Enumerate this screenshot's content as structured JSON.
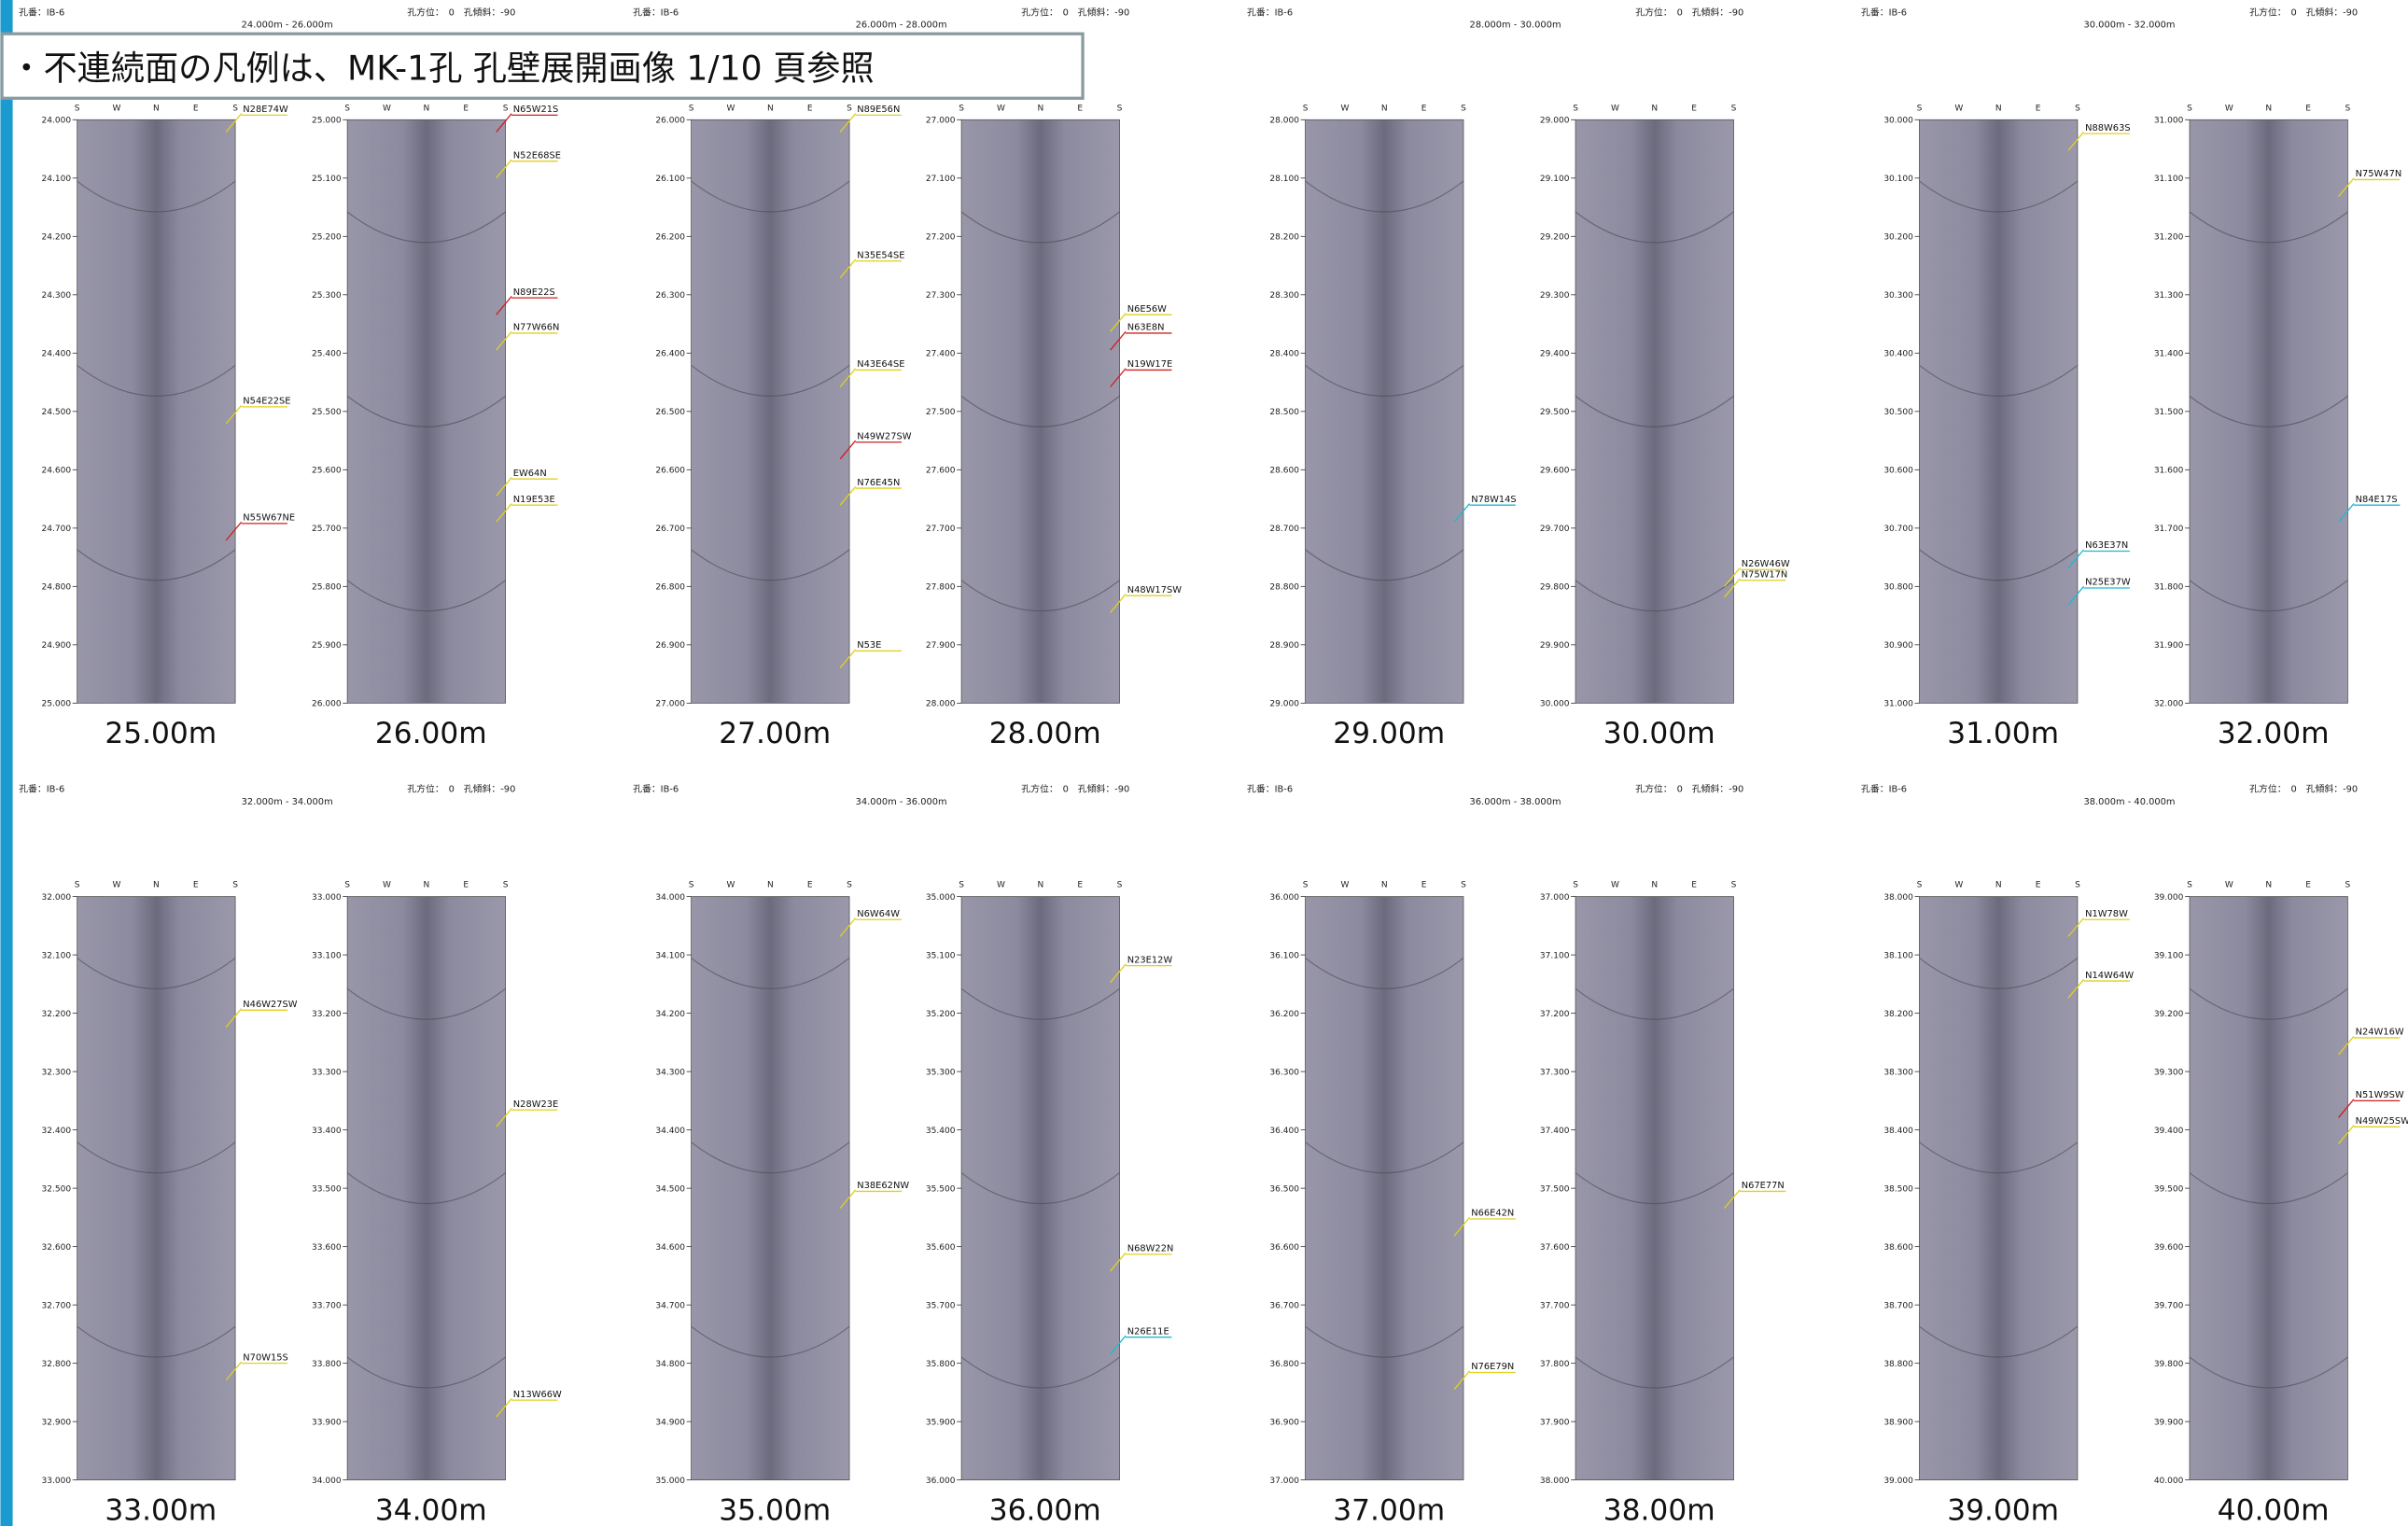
{
  "note": "・不連続面の凡例は、MK-1孔 孔壁展開画像 1/10 頁参照",
  "directions": [
    "S",
    "W",
    "N",
    "E",
    "S"
  ],
  "sheets": [
    {
      "borehole": "孔番：IB-6",
      "range": "24.000m - 26.000m",
      "orientation": "孔方位：　0　孔傾斜：-90",
      "panels": [
        {
          "caption": "25.00m",
          "depth_ticks": [
            "24.000",
            "24.100",
            "24.200",
            "24.300",
            "24.400",
            "24.500",
            "24.600",
            "24.700",
            "24.800",
            "24.900",
            "25.000"
          ],
          "features": [
            {
              "label": "N28E74W",
              "color": "#e0d020"
            },
            {
              "label": "N54E22SE",
              "color": "#e0d020"
            },
            {
              "label": "N55W67NE",
              "color": "#d02020"
            }
          ]
        },
        {
          "caption": "26.00m",
          "depth_ticks": [
            "25.000",
            "25.100",
            "25.200",
            "25.300",
            "25.400",
            "25.500",
            "25.600",
            "25.700",
            "25.800",
            "25.900",
            "26.000"
          ],
          "features": [
            {
              "label": "N65W21S",
              "color": "#d02020"
            },
            {
              "label": "N52E68SE",
              "color": "#e0d020"
            },
            {
              "label": "N89E22S",
              "color": "#d02020"
            },
            {
              "label": "N77W66N",
              "color": "#e0d020"
            },
            {
              "label": "EW64N",
              "color": "#e0d020"
            },
            {
              "label": "N19E53E",
              "color": "#e0d020"
            }
          ]
        }
      ]
    },
    {
      "borehole": "孔番：IB-6",
      "range": "26.000m - 28.000m",
      "orientation": "孔方位：　0　孔傾斜：-90",
      "panels": [
        {
          "caption": "27.00m",
          "depth_ticks": [
            "26.000",
            "26.100",
            "26.200",
            "26.300",
            "26.400",
            "26.500",
            "26.600",
            "26.700",
            "26.800",
            "26.900",
            "27.000"
          ],
          "features": [
            {
              "label": "N89E56N",
              "color": "#e0d020"
            },
            {
              "label": "N35E54SE",
              "color": "#e0d020"
            },
            {
              "label": "N43E64SE",
              "color": "#e0d020"
            },
            {
              "label": "N49W27SW",
              "color": "#d02020"
            },
            {
              "label": "N76E45N",
              "color": "#e0d020"
            },
            {
              "label": "N53E",
              "color": "#e0d020"
            }
          ]
        },
        {
          "caption": "28.00m",
          "depth_ticks": [
            "27.000",
            "27.100",
            "27.200",
            "27.300",
            "27.400",
            "27.500",
            "27.600",
            "27.700",
            "27.800",
            "27.900",
            "28.000"
          ],
          "features": [
            {
              "label": "N6E56W",
              "color": "#e0d020"
            },
            {
              "label": "N63E8N",
              "color": "#d02020"
            },
            {
              "label": "N19W17E",
              "color": "#d02020"
            },
            {
              "label": "N48W17SW",
              "color": "#e0d020"
            }
          ]
        }
      ]
    },
    {
      "borehole": "孔番：IB-6",
      "range": "28.000m - 30.000m",
      "orientation": "孔方位：　0　孔傾斜：-90",
      "panels": [
        {
          "caption": "29.00m",
          "depth_ticks": [
            "28.000",
            "28.100",
            "28.200",
            "28.300",
            "28.400",
            "28.500",
            "28.600",
            "28.700",
            "28.800",
            "28.900",
            "29.000"
          ],
          "features": [
            {
              "label": "N78W14S",
              "color": "#20b8d0"
            }
          ]
        },
        {
          "caption": "30.00m",
          "depth_ticks": [
            "29.000",
            "29.100",
            "29.200",
            "29.300",
            "29.400",
            "29.500",
            "29.600",
            "29.700",
            "29.800",
            "29.900",
            "30.000"
          ],
          "features": [
            {
              "label": "N26W46W",
              "color": "#e0d020"
            },
            {
              "label": "N75W17N",
              "color": "#e0d020"
            }
          ]
        }
      ]
    },
    {
      "borehole": "孔番：IB-6",
      "range": "30.000m - 32.000m",
      "orientation": "孔方位：　0　孔傾斜：-90",
      "panels": [
        {
          "caption": "31.00m",
          "depth_ticks": [
            "30.000",
            "30.100",
            "30.200",
            "30.300",
            "30.400",
            "30.500",
            "30.600",
            "30.700",
            "30.800",
            "30.900",
            "31.000"
          ],
          "features": [
            {
              "label": "N88W63S",
              "color": "#e0d020"
            },
            {
              "label": "N63E37N",
              "color": "#20b8d0"
            },
            {
              "label": "N25E37W",
              "color": "#20b8d0"
            }
          ]
        },
        {
          "caption": "32.00m",
          "depth_ticks": [
            "31.000",
            "31.100",
            "31.200",
            "31.300",
            "31.400",
            "31.500",
            "31.600",
            "31.700",
            "31.800",
            "31.900",
            "32.000"
          ],
          "features": [
            {
              "label": "N75W47N",
              "color": "#e0d020"
            },
            {
              "label": "N84E17S",
              "color": "#20b8d0"
            }
          ]
        }
      ]
    },
    {
      "borehole": "孔番：IB-6",
      "range": "32.000m - 34.000m",
      "orientation": "孔方位：　0　孔傾斜：-90",
      "panels": [
        {
          "caption": "33.00m",
          "depth_ticks": [
            "32.000",
            "32.100",
            "32.200",
            "32.300",
            "32.400",
            "32.500",
            "32.600",
            "32.700",
            "32.800",
            "32.900",
            "33.000"
          ],
          "features": [
            {
              "label": "N46W27SW",
              "color": "#e0d020"
            },
            {
              "label": "N70W15S",
              "color": "#e0d020"
            }
          ]
        },
        {
          "caption": "34.00m",
          "depth_ticks": [
            "33.000",
            "33.100",
            "33.200",
            "33.300",
            "33.400",
            "33.500",
            "33.600",
            "33.700",
            "33.800",
            "33.900",
            "34.000"
          ],
          "features": [
            {
              "label": "N28W23E",
              "color": "#e0d020"
            },
            {
              "label": "N13W66W",
              "color": "#e0d020"
            }
          ]
        }
      ]
    },
    {
      "borehole": "孔番：IB-6",
      "range": "34.000m - 36.000m",
      "orientation": "孔方位：　0　孔傾斜：-90",
      "panels": [
        {
          "caption": "35.00m",
          "depth_ticks": [
            "34.000",
            "34.100",
            "34.200",
            "34.300",
            "34.400",
            "34.500",
            "34.600",
            "34.700",
            "34.800",
            "34.900",
            "35.000"
          ],
          "features": [
            {
              "label": "N6W64W",
              "color": "#e0d020"
            },
            {
              "label": "N38E62NW",
              "color": "#e0d020"
            }
          ]
        },
        {
          "caption": "36.00m",
          "depth_ticks": [
            "35.000",
            "35.100",
            "35.200",
            "35.300",
            "35.400",
            "35.500",
            "35.600",
            "35.700",
            "35.800",
            "35.900",
            "36.000"
          ],
          "features": [
            {
              "label": "N23E12W",
              "color": "#e0d020"
            },
            {
              "label": "N68W22N",
              "color": "#e0d020"
            },
            {
              "label": "N26E11E",
              "color": "#20b8d0"
            }
          ]
        }
      ]
    },
    {
      "borehole": "孔番：IB-6",
      "range": "36.000m - 38.000m",
      "orientation": "孔方位：　0　孔傾斜：-90",
      "panels": [
        {
          "caption": "37.00m",
          "depth_ticks": [
            "36.000",
            "36.100",
            "36.200",
            "36.300",
            "36.400",
            "36.500",
            "36.600",
            "36.700",
            "36.800",
            "36.900",
            "37.000"
          ],
          "features": [
            {
              "label": "N66E42N",
              "color": "#e0d020"
            },
            {
              "label": "N76E79N",
              "color": "#e0d020"
            }
          ]
        },
        {
          "caption": "38.00m",
          "depth_ticks": [
            "37.000",
            "37.100",
            "37.200",
            "37.300",
            "37.400",
            "37.500",
            "37.600",
            "37.700",
            "37.800",
            "37.900",
            "38.000"
          ],
          "features": [
            {
              "label": "N67E77N",
              "color": "#e0d020"
            }
          ]
        }
      ]
    },
    {
      "borehole": "孔番：IB-6",
      "range": "38.000m - 40.000m",
      "orientation": "孔方位：　0　孔傾斜：-90",
      "panels": [
        {
          "caption": "39.00m",
          "depth_ticks": [
            "38.000",
            "38.100",
            "38.200",
            "38.300",
            "38.400",
            "38.500",
            "38.600",
            "38.700",
            "38.800",
            "38.900",
            "39.000"
          ],
          "features": [
            {
              "label": "N1W78W",
              "color": "#e0d020"
            },
            {
              "label": "N14W64W",
              "color": "#e0d020"
            }
          ]
        },
        {
          "caption": "40.00m",
          "depth_ticks": [
            "39.000",
            "39.100",
            "39.200",
            "39.300",
            "39.400",
            "39.500",
            "39.600",
            "39.700",
            "39.800",
            "39.900",
            "40.000"
          ],
          "features": [
            {
              "label": "N24W16W",
              "color": "#e0d020"
            },
            {
              "label": "N51W9SW",
              "color": "#d02020"
            },
            {
              "label": "N49W25SW",
              "color": "#e0d020"
            }
          ]
        }
      ]
    }
  ]
}
